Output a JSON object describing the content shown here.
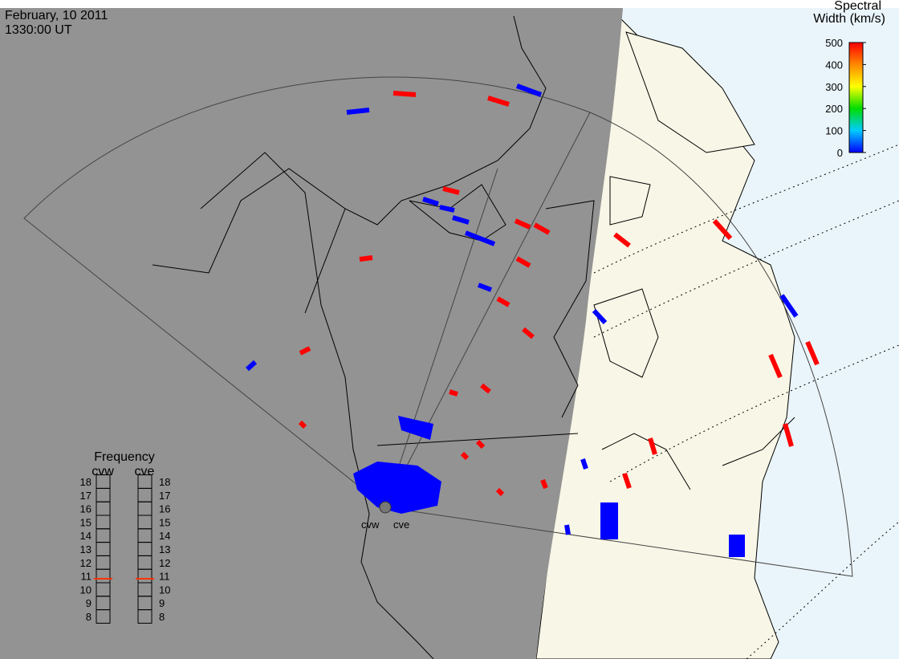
{
  "header": {
    "date": "February, 10 2011",
    "time": "1330:00 UT"
  },
  "colorbar": {
    "title_lines": [
      "Spectral",
      "Width (km/s)"
    ],
    "lim": [
      0,
      500
    ],
    "ticks": [
      0,
      100,
      200,
      300,
      400,
      500
    ]
  },
  "frequency": {
    "title": "Frequency",
    "lim": [
      8,
      18
    ],
    "ticks": [
      8,
      9,
      10,
      11,
      12,
      13,
      14,
      15,
      16,
      17,
      18
    ],
    "radars": [
      {
        "name": "cvw",
        "value": 10.8
      },
      {
        "name": "cve",
        "value": 10.8
      }
    ]
  },
  "sites": [
    "cvw",
    "cve"
  ]
}
